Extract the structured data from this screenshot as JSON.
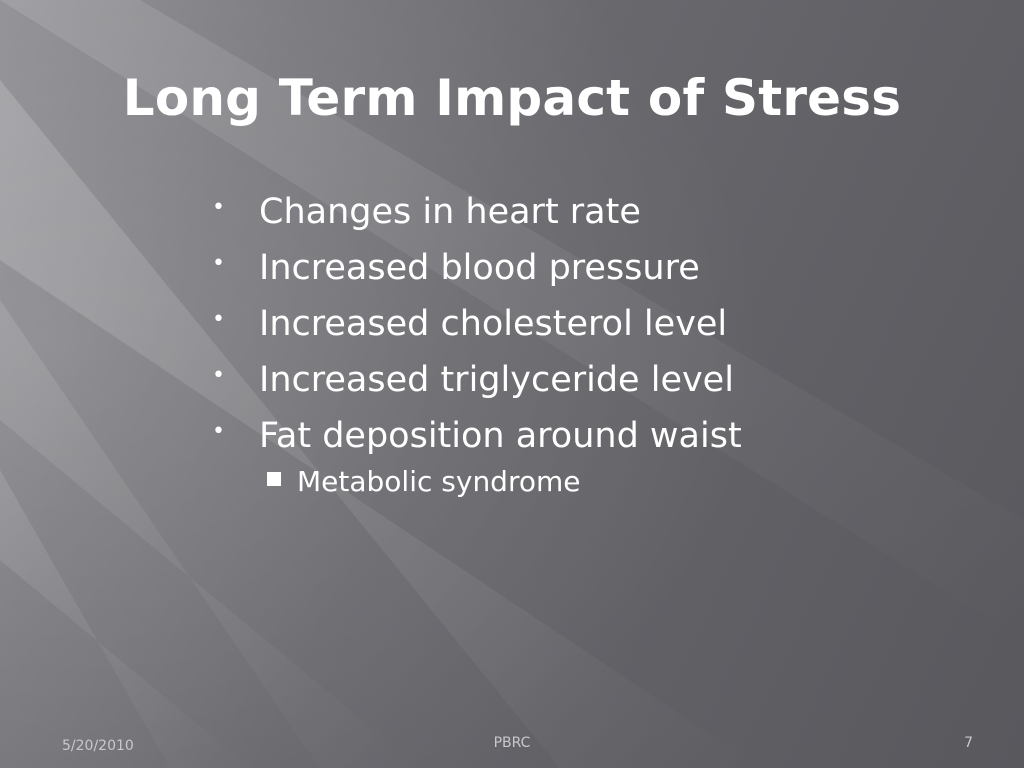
{
  "slide": {
    "title": "Long Term Impact of Stress",
    "bullets": [
      "Changes in heart rate",
      "Increased blood pressure",
      "Increased cholesterol level",
      "Increased triglyceride level",
      "Fat deposition around waist"
    ],
    "sub_bullets": [
      "Metabolic syndrome"
    ],
    "bullet_glyph": "•",
    "sub_bullet_icon": "square-bullet-icon"
  },
  "footer": {
    "date": "5/20/2010",
    "center": "PBRC",
    "page_number": "7"
  },
  "colors": {
    "text": "#ffffff",
    "footer_text": "#c9c9cc",
    "background_light": "#8e8e93",
    "background_dark": "#58585d"
  }
}
